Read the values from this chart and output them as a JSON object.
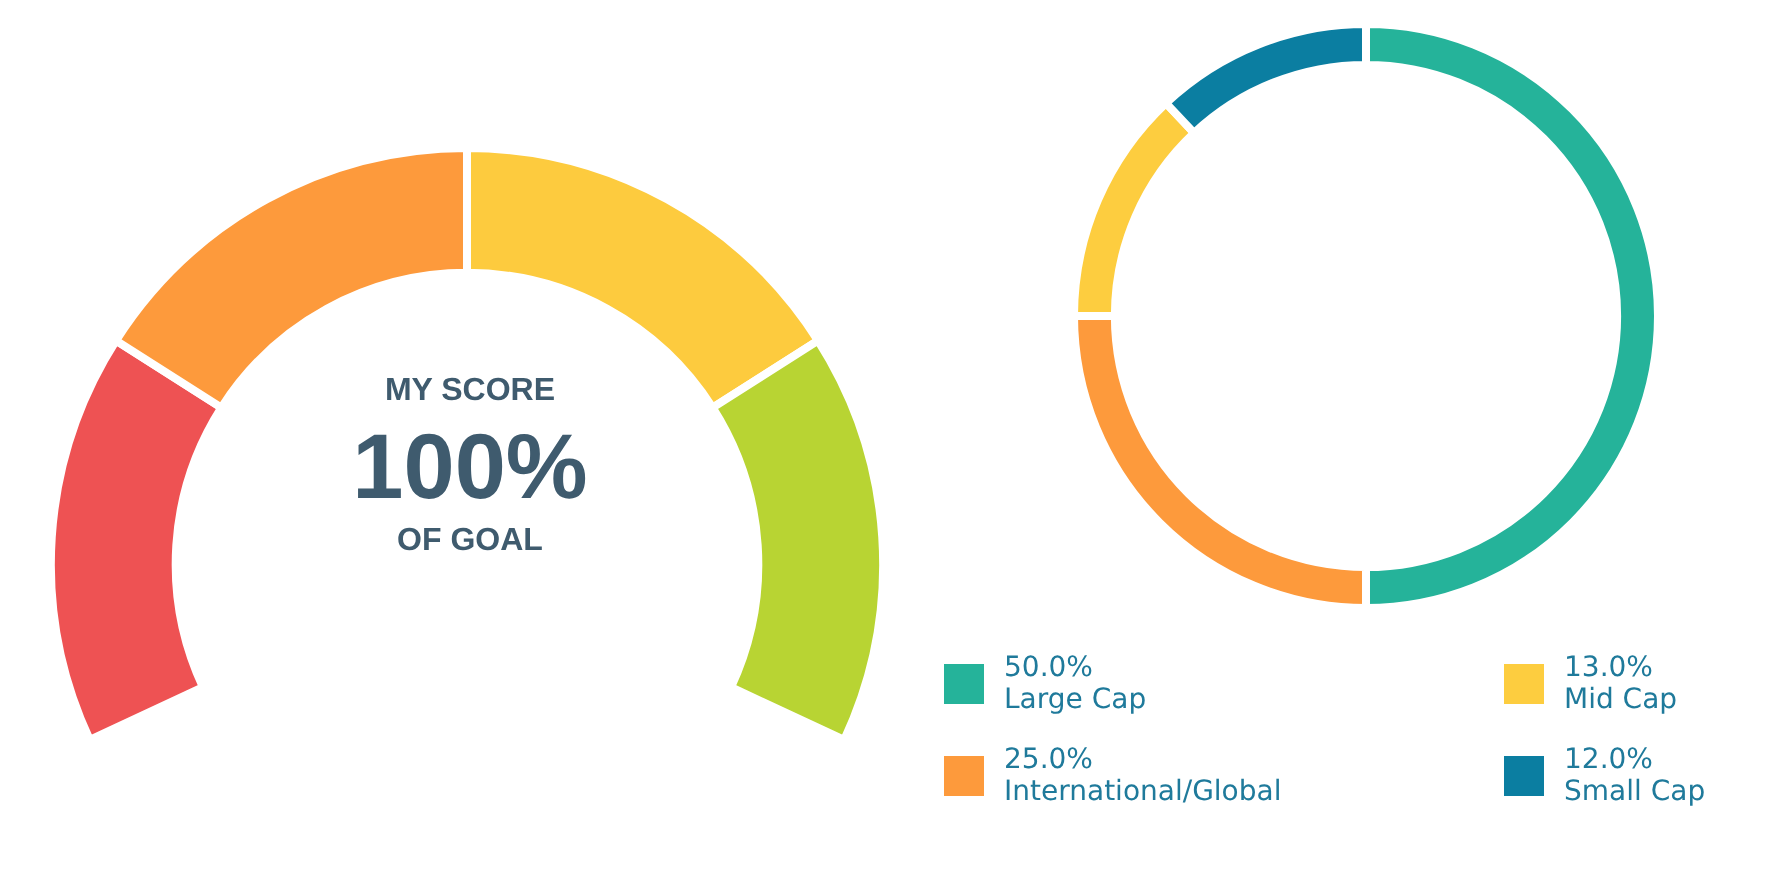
{
  "chart_data": [
    {
      "type": "donut",
      "categories": [
        null,
        null,
        null,
        null
      ],
      "values": [
        25,
        25,
        25,
        25
      ],
      "colors": [
        "#ee5253",
        "#fd9a3c",
        "#fdcb3e",
        "#b8d433"
      ],
      "annotations": [
        "MY SCORE",
        "100%",
        "OF GOAL"
      ],
      "legend": false
    },
    {
      "type": "donut",
      "categories": [
        "Large Cap",
        "International/Global",
        "Mid Cap",
        "Small Cap"
      ],
      "values": [
        50,
        25,
        13,
        12
      ],
      "value_labels": [
        "50.0%",
        "25.0%",
        "13.0%",
        "12.0%"
      ],
      "colors": [
        "#25b39a",
        "#fd9a3c",
        "#fdcd3f",
        "#0b7ea1"
      ],
      "legend": "bottom"
    }
  ]
}
